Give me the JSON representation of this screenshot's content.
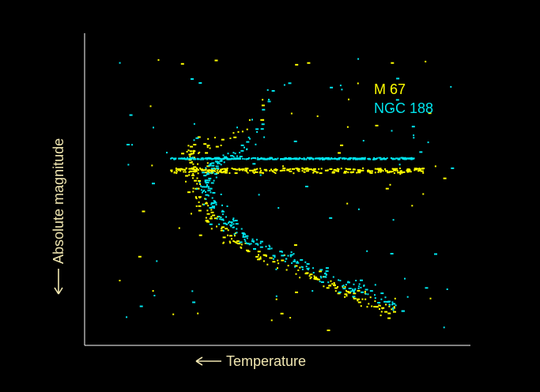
{
  "chart_data": {
    "type": "scatter",
    "xlabel": "Temperature",
    "ylabel": "Absolute magnitude",
    "x_direction_arrow": "left",
    "y_direction_arrow": "down",
    "grid": false,
    "ticks": false,
    "legend_placement": "top-right",
    "axis_color": "#ffffff",
    "label_color": "#f0e6b0",
    "series": [
      {
        "name": "M 67",
        "color": "#ffff00",
        "seed": 67,
        "sequence": [
          [
            0.27,
            0.38
          ],
          [
            0.29,
            0.52
          ],
          [
            0.33,
            0.6
          ],
          [
            0.4,
            0.68
          ],
          [
            0.5,
            0.74
          ],
          [
            0.6,
            0.79
          ],
          [
            0.7,
            0.84
          ],
          [
            0.8,
            0.9
          ]
        ],
        "branch": [
          [
            0.27,
            0.38
          ],
          [
            0.32,
            0.36
          ],
          [
            0.38,
            0.34
          ],
          [
            0.44,
            0.3
          ],
          [
            0.47,
            0.2
          ]
        ],
        "sequence_count": 190,
        "branch_count": 32,
        "field": [
          0.22,
          0.88,
          0.45,
          0.97
        ],
        "field_count": 260,
        "halo_count": 55
      },
      {
        "name": "NGC 188",
        "color": "#00e5ee",
        "seed": 188,
        "sequence": [
          [
            0.33,
            0.42
          ],
          [
            0.31,
            0.5
          ],
          [
            0.35,
            0.58
          ],
          [
            0.42,
            0.66
          ],
          [
            0.52,
            0.72
          ],
          [
            0.62,
            0.78
          ],
          [
            0.72,
            0.83
          ],
          [
            0.82,
            0.88
          ]
        ],
        "branch": [
          [
            0.33,
            0.42
          ],
          [
            0.38,
            0.4
          ],
          [
            0.43,
            0.36
          ],
          [
            0.46,
            0.28
          ],
          [
            0.5,
            0.14
          ]
        ],
        "sequence_count": 230,
        "branch_count": 45,
        "field": [
          0.22,
          0.86,
          0.4,
          0.96
        ],
        "field_count": 300,
        "halo_count": 65
      }
    ]
  }
}
